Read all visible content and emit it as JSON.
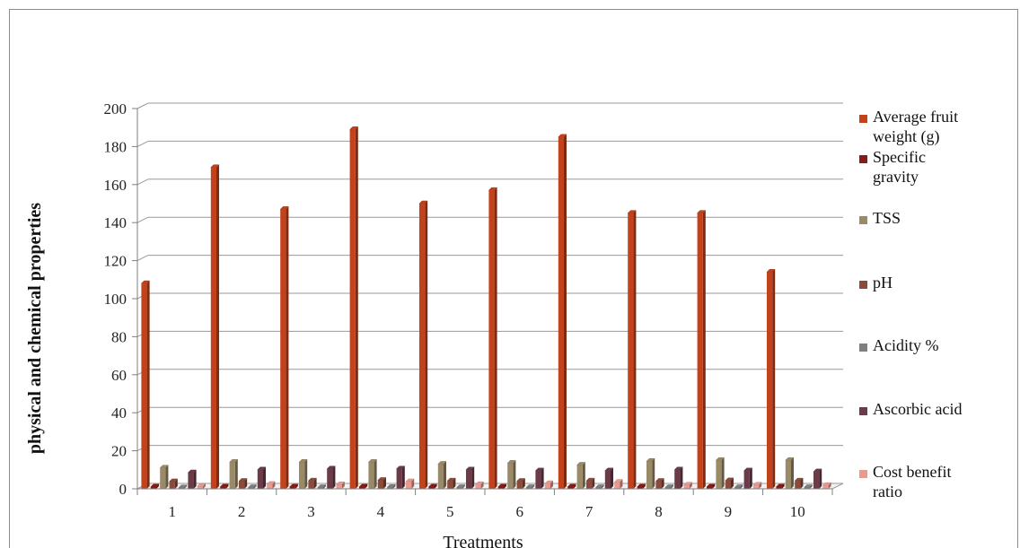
{
  "chart_data": {
    "type": "bar",
    "title": "",
    "xlabel": "Treatments",
    "ylabel": "physical and chemical properties",
    "ylim": [
      0,
      200
    ],
    "yticks": [
      0,
      20,
      40,
      60,
      80,
      100,
      120,
      140,
      160,
      180,
      200
    ],
    "grid": true,
    "legend_position": "right",
    "categories": [
      "1",
      "2",
      "3",
      "4",
      "5",
      "6",
      "7",
      "8",
      "9",
      "10"
    ],
    "series": [
      {
        "name": "Average fruit weight (g)",
        "color": "#c4421b",
        "values": [
          108,
          169,
          147,
          189,
          150,
          157,
          185,
          145,
          145,
          114
        ]
      },
      {
        "name": "Specific gravity",
        "color": "#8b1a12",
        "values": [
          1.0,
          1.0,
          1.0,
          1.0,
          1.0,
          1.0,
          1.0,
          1.0,
          1.0,
          1.0
        ]
      },
      {
        "name": "TSS",
        "color": "#9a8a68",
        "values": [
          11,
          14,
          14,
          14,
          13,
          13.5,
          12.5,
          14.5,
          15,
          15
        ]
      },
      {
        "name": "pH",
        "color": "#8b4a3a",
        "values": [
          3.8,
          4.0,
          4.2,
          4.5,
          4.2,
          4.0,
          4.2,
          4.0,
          4.3,
          4.2
        ]
      },
      {
        "name": "Acidity %",
        "color": "#7f7f7f",
        "values": [
          0.6,
          0.7,
          0.7,
          0.8,
          0.7,
          0.7,
          0.7,
          0.7,
          0.7,
          0.7
        ]
      },
      {
        "name": "Ascorbic acid",
        "color": "#6b3b48",
        "values": [
          8.5,
          10,
          10.5,
          10.5,
          10,
          9.5,
          9.5,
          10,
          9.5,
          9
        ]
      },
      {
        "name": "Cost benefit ratio",
        "color": "#e89a90",
        "values": [
          1.3,
          2.4,
          2.2,
          3.8,
          2.3,
          2.8,
          3.5,
          2.0,
          2.0,
          1.8
        ]
      }
    ]
  }
}
